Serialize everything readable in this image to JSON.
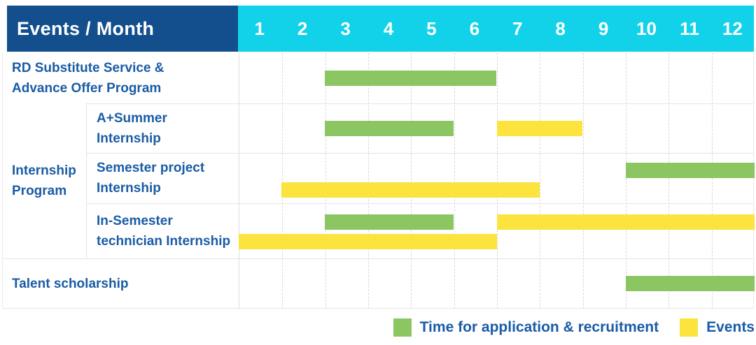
{
  "header": {
    "title": "Events / Month",
    "months": [
      "1",
      "2",
      "3",
      "4",
      "5",
      "6",
      "7",
      "8",
      "9",
      "10",
      "11",
      "12"
    ]
  },
  "colors": {
    "header_navy": "#124F8C",
    "header_cyan": "#12D2EA",
    "application_green": "#8CC663",
    "events_yellow": "#FDE33E",
    "label_blue": "#1A5CA5"
  },
  "legend": {
    "application_label": "Time for application & recruitment",
    "events_label": "Events"
  },
  "chart_data": {
    "type": "gantt",
    "title": "Events / Month",
    "x_unit": "month",
    "x_ticks": [
      1,
      2,
      3,
      4,
      5,
      6,
      7,
      8,
      9,
      10,
      11,
      12
    ],
    "x_range": [
      1,
      12
    ],
    "legend_position": "bottom-right",
    "legend": [
      {
        "key": "application",
        "label": "Time for application & recruitment",
        "color": "#8CC663"
      },
      {
        "key": "events",
        "label": "Events",
        "color": "#FDE33E"
      }
    ],
    "group_label_lines": [
      "Internship",
      "Program"
    ],
    "rows": [
      {
        "group": "",
        "label_lines": [
          "RD Substitute Service &",
          "Advance Offer Program"
        ],
        "bars": [
          {
            "kind": "application",
            "start_month": 3,
            "end_month": 6,
            "line": "center"
          }
        ]
      },
      {
        "group": "Internship Program",
        "label_lines": [
          "A+Summer",
          "Internship"
        ],
        "bars": [
          {
            "kind": "application",
            "start_month": 3,
            "end_month": 5,
            "line": "center"
          },
          {
            "kind": "events",
            "start_month": 7,
            "end_month": 8,
            "line": "center"
          }
        ]
      },
      {
        "group": "Internship Program",
        "label_lines": [
          "Semester project",
          "Internship"
        ],
        "bars": [
          {
            "kind": "application",
            "start_month": 10,
            "end_month": 12,
            "line": "upper"
          },
          {
            "kind": "events",
            "start_month": 2,
            "end_month": 7,
            "line": "lower"
          }
        ]
      },
      {
        "group": "Internship Program",
        "label_lines": [
          "In-Semester",
          "technician Internship"
        ],
        "bars": [
          {
            "kind": "application",
            "start_month": 3,
            "end_month": 5,
            "line": "upper"
          },
          {
            "kind": "events",
            "start_month": 7,
            "end_month": 12,
            "line": "upper"
          },
          {
            "kind": "events",
            "start_month": 1,
            "end_month": 6,
            "line": "lower"
          }
        ]
      },
      {
        "group": "",
        "label_lines": [
          "Talent scholarship"
        ],
        "bars": [
          {
            "kind": "application",
            "start_month": 10,
            "end_month": 12,
            "line": "center"
          }
        ]
      }
    ]
  }
}
